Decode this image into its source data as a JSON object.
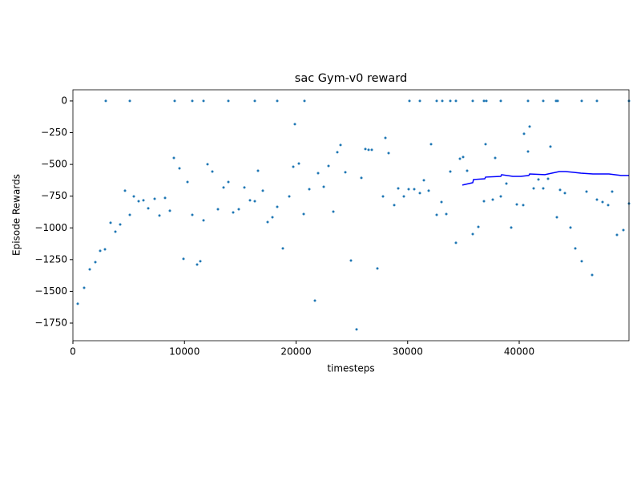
{
  "chart_data": {
    "type": "scatter",
    "title": "sac Gym-v0 reward",
    "xlabel": "timesteps",
    "ylabel": "Episode Rewards",
    "xlim": [
      0,
      49838
    ],
    "ylim": [
      -1889,
      88
    ],
    "xticks": [
      0,
      10000,
      20000,
      30000,
      40000
    ],
    "yticks": [
      0,
      {
        "value": -250,
        "label": "−250"
      },
      {
        "value": -500,
        "label": "−500"
      },
      {
        "value": -750,
        "label": "−750"
      },
      {
        "value": -1000,
        "label": "−1000"
      },
      {
        "value": -1250,
        "label": "−1250"
      },
      {
        "value": -1500,
        "label": "−1500"
      },
      {
        "value": -1750,
        "label": "−1750"
      }
    ],
    "series": [
      {
        "type": "scatter",
        "color": "#1f77b4",
        "x": [
          431,
          1005,
          1508,
          2011,
          2442,
          2873,
          2944,
          3375,
          3806,
          4237,
          4668,
          5099,
          5099,
          5458,
          5889,
          6320,
          6750,
          7325,
          7756,
          8259,
          8689,
          9048,
          9120,
          9551,
          9910,
          10269,
          10700,
          10700,
          11131,
          11418,
          11706,
          11706,
          12065,
          12496,
          12998,
          13501,
          13932,
          13932,
          14363,
          14865,
          15368,
          15871,
          16302,
          16302,
          16589,
          17020,
          17451,
          17882,
          18312,
          18312,
          18815,
          19390,
          19749,
          19892,
          20251,
          20682,
          20754,
          21185,
          21688,
          21975,
          22478,
          22909,
          23340,
          23698,
          23986,
          24417,
          24919,
          25422,
          25853,
          26212,
          26499,
          26786,
          27289,
          27792,
          28007,
          28294,
          28797,
          29156,
          29659,
          30090,
          30162,
          30592,
          31095,
          31095,
          31454,
          31885,
          32101,
          32603,
          32603,
          33034,
          33106,
          33465,
          33824,
          33824,
          34327,
          34327,
          34686,
          34973,
          35332,
          35835,
          35835,
          36338,
          36840,
          36840,
          37056,
          36984,
          37630,
          37846,
          38348,
          38348,
          38851,
          39282,
          39785,
          40359,
          40431,
          40790,
          40790,
          40934,
          41293,
          41724,
          42154,
          42154,
          42585,
          42800,
          43303,
          43447,
          43375,
          43662,
          44093,
          44596,
          45027,
          45601,
          45601,
          46032,
          46535,
          46966,
          46966,
          47469,
          47971,
          48330,
          48761,
          49336,
          49838,
          49838
        ],
        "values": [
          -1598,
          -1472,
          -1327,
          -1270,
          -1181,
          -1169,
          0,
          -960,
          -1030,
          -973,
          -707,
          -897,
          0,
          -752,
          -790,
          -783,
          -846,
          -771,
          -903,
          -764,
          -865,
          -449,
          0,
          -531,
          -1244,
          -638,
          -897,
          0,
          -1289,
          -1263,
          -941,
          0,
          -499,
          -556,
          -853,
          -682,
          -638,
          0,
          -878,
          -853,
          -682,
          -783,
          -790,
          0,
          -550,
          -707,
          -954,
          -916,
          -834,
          0,
          -1162,
          -752,
          -518,
          -183,
          -493,
          -891,
          0,
          -695,
          -1573,
          -569,
          -676,
          -512,
          -872,
          -404,
          -347,
          -562,
          -1257,
          -1800,
          -606,
          -379,
          -385,
          -385,
          -1320,
          -752,
          -291,
          -411,
          -821,
          -689,
          -752,
          -695,
          0,
          -695,
          -726,
          0,
          -625,
          -707,
          -341,
          -897,
          0,
          -796,
          0,
          -891,
          -556,
          0,
          0,
          -1118,
          -455,
          -442,
          -550,
          -1049,
          0,
          -992,
          -790,
          0,
          0,
          -341,
          -777,
          -449,
          -752,
          0,
          -651,
          -998,
          -815,
          -821,
          -259,
          -398,
          0,
          -202,
          -689,
          -619,
          -689,
          0,
          -613,
          -360,
          0,
          0,
          -916,
          -701,
          -726,
          -998,
          -1162,
          -1263,
          0,
          -714,
          -1371,
          0,
          -777,
          -796,
          -821,
          -714,
          -1055,
          -1017,
          0,
          -808
        ]
      },
      {
        "type": "line",
        "color": "#0000ff",
        "x": [
          34901,
          35835,
          35907,
          36912,
          36984,
          38348,
          38420,
          39425,
          40144,
          40862,
          40934,
          42298,
          43591,
          44165,
          44811,
          45530,
          46607,
          48043,
          49120,
          49838
        ],
        "values": [
          -663,
          -644,
          -619,
          -613,
          -600,
          -594,
          -581,
          -594,
          -594,
          -587,
          -575,
          -581,
          -556,
          -556,
          -562,
          -569,
          -575,
          -575,
          -587,
          -587
        ]
      }
    ]
  }
}
